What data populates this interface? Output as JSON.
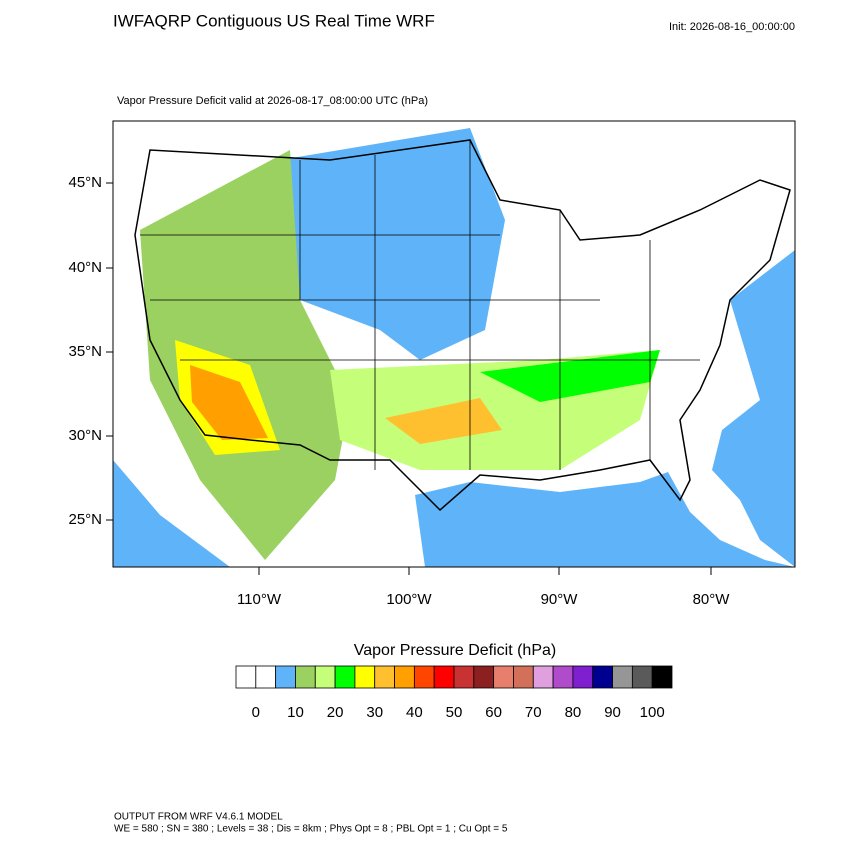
{
  "header": {
    "title": "IWFAQRP Contiguous US Real Time WRF",
    "init": "Init: 2026-08-16_00:00:00"
  },
  "map": {
    "subtitle": "Vapor Pressure Deficit valid at 2026-08-17_08:00:00 UTC   (hPa)",
    "lat_labels": [
      "45°N",
      "40°N",
      "35°N",
      "30°N",
      "25°N"
    ],
    "lon_labels": [
      "110°W",
      "100°W",
      "90°W",
      "80°W"
    ]
  },
  "colorbar": {
    "title": "Vapor Pressure Deficit  (hPa)",
    "colors": [
      "#ffffff",
      "#ffffff",
      "#5fb4f9",
      "#9bd160",
      "#c5ff7a",
      "#00ff00",
      "#ffff00",
      "#ffc030",
      "#ffa000",
      "#ff4500",
      "#ff0000",
      "#c83232",
      "#8c2020",
      "#e87e6c",
      "#d2705a",
      "#e0a0e0",
      "#b04ccc",
      "#7f20d0",
      "#000090",
      "#969696",
      "#5a5a5a",
      "#000000"
    ],
    "ticks": [
      0,
      10,
      20,
      30,
      40,
      50,
      60,
      70,
      80,
      90,
      100
    ]
  },
  "footer": {
    "line1": "OUTPUT FROM WRF V4.6.1 MODEL",
    "line2": "WE = 580 ; SN = 380 ; Levels = 38 ; Dis = 8km ; Phys Opt = 8 ; PBL Opt = 1 ; Cu Opt = 5"
  }
}
